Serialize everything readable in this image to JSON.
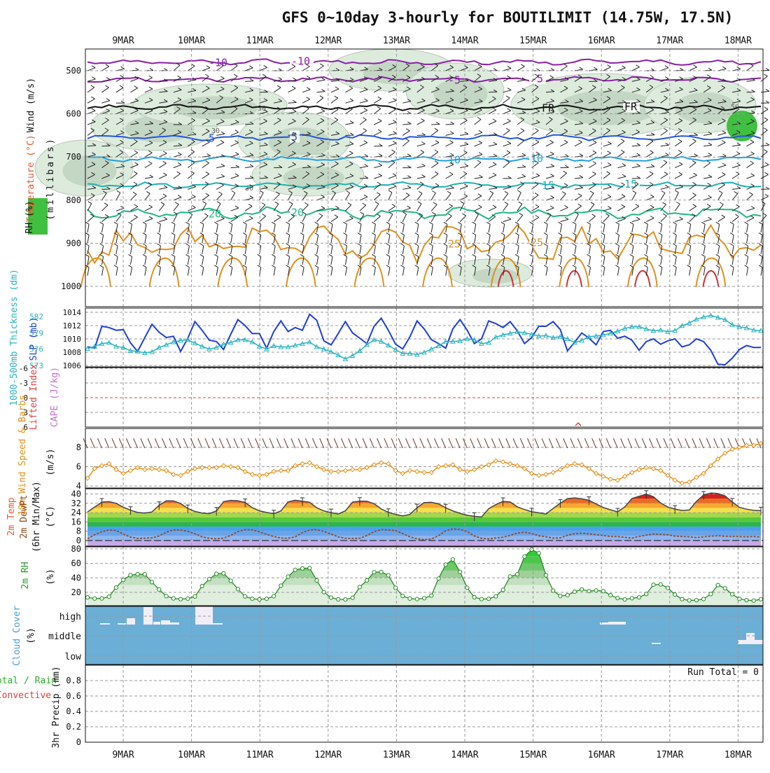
{
  "chart_data": {
    "type": "meteogram",
    "title": "GFS 0~10day 3-hourly for BOUTILIMIT (14.75W, 17.5N)",
    "dates": [
      "9MAR",
      "10MAR",
      "11MAR",
      "12MAR",
      "13MAR",
      "14MAR",
      "15MAR",
      "16MAR",
      "17MAR",
      "18MAR"
    ],
    "colors": {
      "grid": "#9a9a9a",
      "cloud_bg": "#6baed6",
      "cloud_bar": "#f2eef8",
      "slp": "#1f3fd6",
      "thick": "#28b4c0",
      "wind": "#e8901a",
      "rh_line": "#2a8a2a",
      "li_zero": "#e04040"
    },
    "upper_air": {
      "ylabel_wind": "Wind (m/s)",
      "ylabel_temp": "Temperature (°C)",
      "ylabel_rh": "RH (%)",
      "ylabel_units": "(millibars)",
      "pressure_levels": [
        "500",
        "600",
        "700",
        "800",
        "900",
        "1000"
      ],
      "isotherms": [
        {
          "label": "-10",
          "level": 480,
          "color": "#8a1fa8"
        },
        {
          "label": "-5",
          "level": 520,
          "color": "#8a1fa8"
        },
        {
          "label": "FR",
          "level": 585,
          "color": "#111111"
        },
        {
          "label": "5",
          "level": 655,
          "color": "#2255dd"
        },
        {
          "label": "10",
          "level": 705,
          "color": "#20a0e0"
        },
        {
          "label": "15",
          "level": 765,
          "color": "#20b0b0"
        },
        {
          "label": "20",
          "level": 830,
          "color": "#20b880"
        },
        {
          "label": "25",
          "level": 900,
          "color": "#e09020"
        }
      ],
      "rh_contour_labels": [
        "30",
        "50",
        "30",
        "50"
      ]
    },
    "slp_thickness": {
      "ylabel_thick": "1000-500mb Thickness (dm)",
      "ylabel_slp": "SLP (mb)",
      "thickness_ticks": [
        "582",
        "579",
        "576",
        "573"
      ],
      "slp_ticks": [
        "1014",
        "1012",
        "1010",
        "1008",
        "1006"
      ],
      "thickness_range": [
        573,
        583
      ],
      "slp_range": [
        1005,
        1015
      ],
      "slp": [
        1008.8,
        1008.6,
        1011.9,
        1011.7,
        1011.3,
        1011.4,
        1009.4,
        1008.1,
        1010.2,
        1012.2,
        1011.0,
        1010.2,
        1010.4,
        1008.1,
        1010.1,
        1012.6,
        1011.3,
        1009.8,
        1009.6,
        1008.4,
        1010.7,
        1012.9,
        1012.0,
        1010.8,
        1010.8,
        1008.6,
        1011.1,
        1012.7,
        1011.1,
        1011.7,
        1011.3,
        1013.7,
        1012.8,
        1009.7,
        1009.1,
        1010.8,
        1012.6,
        1010.9,
        1010.1,
        1009.3,
        1011.9,
        1013.1,
        1011.3,
        1009.2,
        1008.5,
        1010.3,
        1012.7,
        1011.5,
        1009.9,
        1009.3,
        1008.6,
        1011.5,
        1012.9,
        1011.3,
        1009.3,
        1010.0,
        1012.7,
        1012.3,
        1011.7,
        1012.6,
        1011.2,
        1009.3,
        1010.2,
        1011.9,
        1011.9,
        1012.6,
        1011.4,
        1008.2,
        1009.5,
        1010.9,
        1010.1,
        1009.1,
        1011.1,
        1011.3,
        1010.1,
        1010.4,
        1009.8,
        1008.3,
        1009.6,
        1010.0,
        1009.2,
        1009.7,
        1010.0,
        1008.8,
        1009.1,
        1010.0,
        1009.6,
        1008.3,
        1006.2,
        1006.1,
        1007.1,
        1008.4,
        1009.0,
        1008.7,
        1008.7
      ],
      "thickness": [
        576.1,
        576.5,
        577.0,
        577.2,
        576.5,
        576.3,
        575.7,
        575.6,
        575.3,
        575.5,
        576.3,
        576.8,
        577.3,
        577.6,
        577.7,
        577.1,
        576.5,
        576.0,
        576.3,
        576.9,
        577.2,
        577.7,
        577.7,
        577.3,
        576.5,
        576.0,
        576.6,
        576.4,
        576.4,
        576.7,
        577.0,
        577.3,
        576.4,
        576.0,
        575.5,
        574.9,
        574.2,
        574.8,
        575.7,
        576.8,
        577.7,
        577.4,
        576.7,
        575.9,
        575.2,
        575.2,
        575.0,
        575.4,
        576.0,
        576.6,
        577.4,
        577.4,
        577.5,
        577.9,
        577.7,
        577.0,
        577.2,
        578.2,
        578.6,
        578.9,
        579.2,
        579.0,
        578.7,
        578.4,
        578.5,
        578.1,
        578.3,
        577.9,
        577.2,
        577.6,
        578.3,
        578.4,
        578.6,
        578.9,
        579.3,
        579.8,
        580.1,
        580.1,
        579.7,
        579.4,
        579.5,
        579.2,
        579.4,
        580.3,
        580.8,
        581.5,
        581.9,
        582.2,
        581.8,
        581.4,
        580.5,
        580.1,
        579.9,
        579.5,
        579.4
      ]
    },
    "cape_li": {
      "ylabel_li": "Lifted Index",
      "ylabel_cape": "CAPE (J/kg)",
      "li_ticks": [
        "-6",
        "-3",
        "0",
        "3",
        "6"
      ]
    },
    "wind10m": {
      "ylabel": "10m Wind Speed & Barbs",
      "units": "(m/s)",
      "ticks": [
        "8",
        "6",
        "4"
      ],
      "range": [
        3.6,
        9.0
      ],
      "values": [
        4.8,
        5.8,
        6.1,
        6.3,
        5.7,
        5.3,
        5.6,
        5.9,
        5.7,
        5.8,
        5.7,
        5.6,
        5.2,
        5.1,
        5.5,
        5.8,
        5.9,
        5.9,
        5.9,
        6.1,
        6.0,
        5.9,
        5.5,
        5.2,
        5.1,
        5.2,
        5.5,
        5.6,
        5.6,
        6.1,
        6.3,
        6.4,
        6.0,
        5.7,
        5.5,
        5.5,
        5.6,
        5.7,
        5.7,
        5.9,
        6.2,
        6.4,
        6.3,
        5.6,
        5.3,
        5.6,
        5.5,
        5.4,
        5.4,
        6.0,
        6.1,
        6.2,
        5.7,
        5.5,
        5.7,
        6.0,
        6.2,
        6.6,
        6.5,
        6.3,
        6.1,
        5.8,
        5.3,
        5.1,
        5.2,
        5.4,
        5.7,
        6.1,
        6.3,
        6.2,
        5.8,
        5.3,
        5.0,
        4.7,
        4.6,
        5.0,
        5.4,
        5.7,
        5.9,
        5.8,
        5.6,
        5.1,
        4.6,
        4.3,
        4.4,
        4.9,
        5.3,
        6.1,
        6.8,
        7.4,
        7.8,
        8.0,
        8.2,
        8.2,
        8.4
      ]
    },
    "temp2m": {
      "ylabel_temp": "2m Temp",
      "ylabel_dew": "2m DewPt",
      "ylabel_minmax": "(6hr Min/Max)",
      "units": "(°C)",
      "ticks": [
        "40",
        "32",
        "24",
        "16",
        "8",
        "0"
      ],
      "range": [
        -5,
        43
      ],
      "temp": [
        24.5,
        28.7,
        33.0,
        33.4,
        32.0,
        28.6,
        26.0,
        24.1,
        23.6,
        24.5,
        30.2,
        34.1,
        34.0,
        31.8,
        27.5,
        25.0,
        23.6,
        23.1,
        25.4,
        33.4,
        34.5,
        34.1,
        32.7,
        28.2,
        25.5,
        24.1,
        23.0,
        25.4,
        33.2,
        34.6,
        33.7,
        32.9,
        28.1,
        25.4,
        24.0,
        22.8,
        25.5,
        33.0,
        33.8,
        33.7,
        31.6,
        27.1,
        24.2,
        22.5,
        21.1,
        22.4,
        28.2,
        32.6,
        32.8,
        31.5,
        28.1,
        25.4,
        23.4,
        21.7,
        20.8,
        20.2,
        27.3,
        30.8,
        33.6,
        33.1,
        28.9,
        26.6,
        24.7,
        23.8,
        22.8,
        27.5,
        32.1,
        36.0,
        36.6,
        35.8,
        34.5,
        31.4,
        28.3,
        26.4,
        24.6,
        28.9,
        36.1,
        38.0,
        39.8,
        37.6,
        32.3,
        28.7,
        27.0,
        25.8,
        26.2,
        33.6,
        39.1,
        40.8,
        40.3,
        38.3,
        33.2,
        28.5,
        26.9,
        25.9,
        25.6
      ],
      "dewpt": [
        1.5,
        5.0,
        7.6,
        9.1,
        8.6,
        5.5,
        3.0,
        1.8,
        2.1,
        2.3,
        3.9,
        7.2,
        9.1,
        9.0,
        7.9,
        5.8,
        3.2,
        2.0,
        1.5,
        2.1,
        4.4,
        7.7,
        9.3,
        9.2,
        7.5,
        5.2,
        3.5,
        2.1,
        1.9,
        3.2,
        6.8,
        9.1,
        9.4,
        7.8,
        5.5,
        3.2,
        2.0,
        1.8,
        1.9,
        4.3,
        7.7,
        9.3,
        9.1,
        8.5,
        6.0,
        3.2,
        1.5,
        0.8,
        1.3,
        4.2,
        8.4,
        10.0,
        9.6,
        7.7,
        3.9,
        1.9,
        1.4,
        2.2,
        2.9,
        4.4,
        6.4,
        7.2,
        6.0,
        4.1,
        3.3,
        2.1,
        2.3,
        4.5,
        5.8,
        6.4,
        5.7,
        5.0,
        4.3,
        3.5,
        3.4,
        2.7,
        2.1,
        3.5,
        4.6,
        5.6,
        5.3,
        4.9,
        3.8,
        3.5,
        3.2,
        2.6,
        3.2,
        3.8,
        4.1,
        3.6,
        3.5,
        3.4,
        3.2,
        3.4,
        3.0
      ]
    },
    "rh2m": {
      "ylabel": "2m RH",
      "units": "(%)",
      "ticks": [
        "80",
        "60",
        "40",
        "20"
      ],
      "range": [
        5,
        85
      ],
      "values": [
        13.0,
        11.5,
        11.6,
        14.0,
        26.7,
        37.3,
        43.8,
        45.1,
        45.0,
        34.1,
        24.0,
        14.8,
        11.6,
        10.6,
        11.4,
        14.3,
        28.7,
        38.4,
        45.6,
        46.3,
        35.9,
        24.4,
        14.4,
        11.2,
        10.3,
        11.1,
        14.7,
        29.2,
        41.7,
        51.0,
        53.0,
        53.5,
        36.4,
        20.3,
        12.8,
        10.3,
        10.2,
        12.6,
        27.3,
        36.5,
        47.8,
        48.2,
        43.6,
        26.3,
        15.0,
        11.4,
        10.7,
        11.9,
        15.5,
        39.0,
        58.3,
        65.3,
        48.2,
        26.4,
        13.2,
        10.7,
        11.1,
        14.5,
        23.5,
        41.9,
        44.9,
        69.4,
        78.9,
        74.2,
        43.6,
        22.4,
        15.0,
        16.0,
        20.9,
        24.1,
        21.7,
        22.6,
        21.6,
        16.0,
        12.1,
        10.3,
        11.9,
        13.0,
        17.7,
        30.5,
        30.9,
        26.2,
        16.9,
        10.6,
        8.9,
        9.2,
        10.8,
        17.7,
        30.0,
        25.6,
        17.4,
        11.0,
        9.3,
        8.6,
        10.5
      ]
    },
    "cloud": {
      "ylabel": "Cloud Cover",
      "units": "(%)",
      "ticks": [
        "high",
        "middle",
        "low"
      ]
    },
    "precip": {
      "ylabel_main": "3hr Precip (mm)",
      "ylabel_total": "Total / Rain",
      "ylabel_conv": "Convective",
      "ticks": [
        "0.8",
        "0.6",
        "0.4",
        "0.2",
        "0"
      ],
      "run_total": "Run Total = 0"
    }
  }
}
